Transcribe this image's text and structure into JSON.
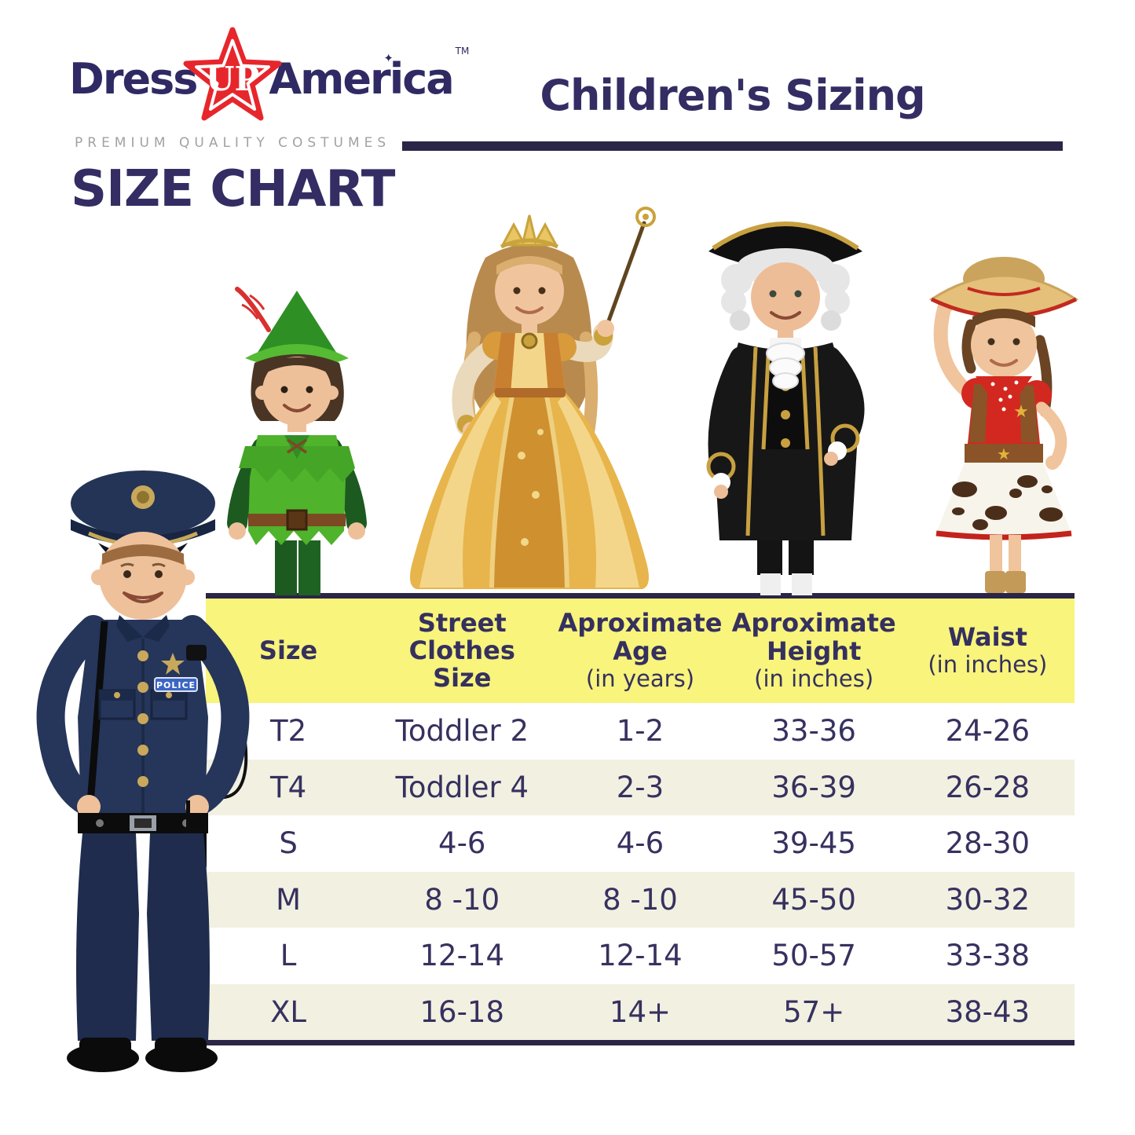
{
  "brand": {
    "dress": "Dress",
    "up": "UP",
    "america": "America",
    "trademark": "TM",
    "tagline": "PREMIUM QUALITY COSTUMES",
    "size_chart_heading": "SIZE CHART"
  },
  "header": {
    "title": "Children's Sizing"
  },
  "figures": [
    "police-officer",
    "peter-pan",
    "princess",
    "colonial-george-washington",
    "cowgirl"
  ],
  "colors": {
    "navy_text": "#332d63",
    "rule_navy": "#2b2547",
    "logo_red": "#e7262c",
    "tagline_gray": "#a2a2a2",
    "header_yellow": "#f8f47c",
    "row_cream": "#f2f0e1",
    "row_white": "#ffffff"
  },
  "table": {
    "columns": [
      {
        "id": "size",
        "title": "Size",
        "note": ""
      },
      {
        "id": "street-clothes-size",
        "title": "Street Clothes Size",
        "note": ""
      },
      {
        "id": "approximate-age",
        "title": "Aproximate Age",
        "note": "(in years)"
      },
      {
        "id": "approximate-height",
        "title": "Aproximate Height",
        "note": "(in inches)"
      },
      {
        "id": "waist",
        "title": "Waist",
        "note": "(in inches)"
      }
    ],
    "rows": [
      {
        "cells": [
          "T2",
          "Toddler 2",
          "1-2",
          "33-36",
          "24-26"
        ]
      },
      {
        "cells": [
          "T4",
          "Toddler 4",
          "2-3",
          "36-39",
          "26-28"
        ]
      },
      {
        "cells": [
          "S",
          "4-6",
          "4-6",
          "39-45",
          "28-30"
        ]
      },
      {
        "cells": [
          "M",
          "8 -10",
          "8 -10",
          "45-50",
          "30-32"
        ]
      },
      {
        "cells": [
          "L",
          "12-14",
          "12-14",
          "50-57",
          "33-38"
        ]
      },
      {
        "cells": [
          "XL",
          "16-18",
          "14+",
          "57+",
          "38-43"
        ]
      }
    ]
  }
}
